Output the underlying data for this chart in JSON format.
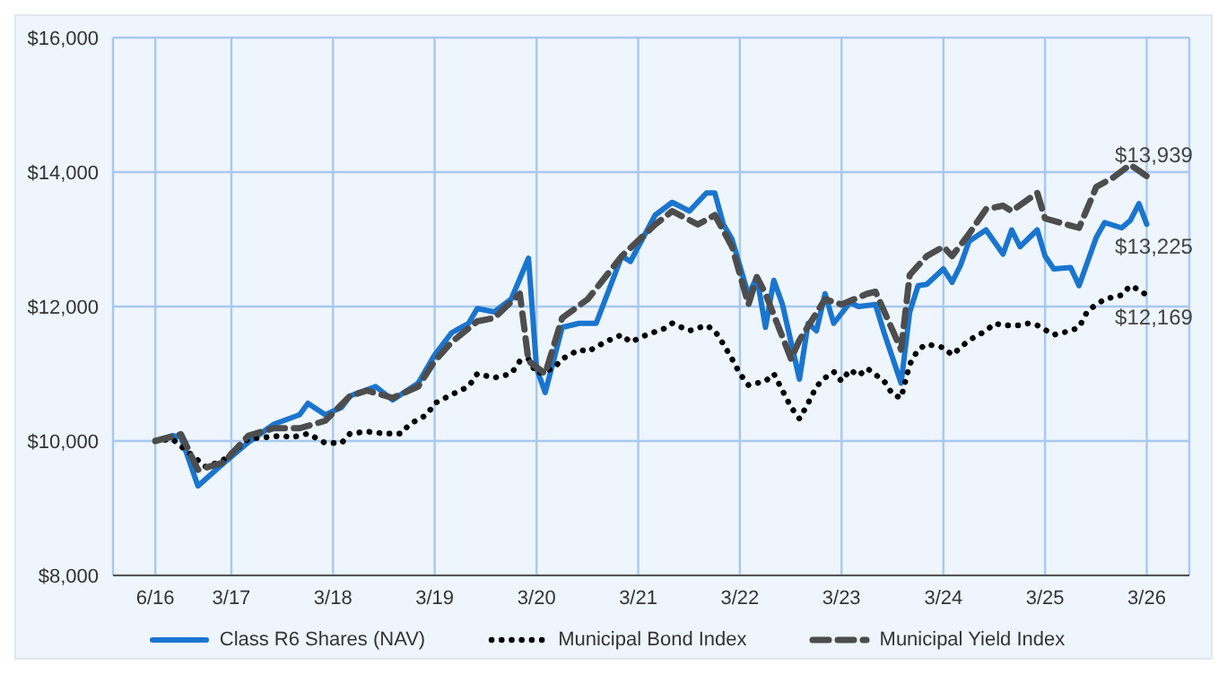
{
  "chart_data": {
    "type": "line",
    "xlim": [
      "2016-01",
      "2026-08"
    ],
    "xticks": [
      {
        "value": "2016-06",
        "label": "6/16"
      },
      {
        "value": "2017-03",
        "label": "3/17"
      },
      {
        "value": "2018-03",
        "label": "3/18"
      },
      {
        "value": "2019-03",
        "label": "3/19"
      },
      {
        "value": "2020-03",
        "label": "3/20"
      },
      {
        "value": "2021-03",
        "label": "3/21"
      },
      {
        "value": "2022-03",
        "label": "3/22"
      },
      {
        "value": "2023-03",
        "label": "3/23"
      },
      {
        "value": "2024-03",
        "label": "3/24"
      },
      {
        "value": "2025-03",
        "label": "3/25"
      },
      {
        "value": "2026-03",
        "label": "3/26"
      }
    ],
    "ylim": [
      8000,
      16000
    ],
    "yticks": [
      {
        "value": 8000,
        "label": "$8,000"
      },
      {
        "value": 10000,
        "label": "$10,000"
      },
      {
        "value": 12000,
        "label": "$12,000"
      },
      {
        "value": 14000,
        "label": "$14,000"
      },
      {
        "value": 16000,
        "label": "$16,000"
      }
    ],
    "grid": true,
    "legend": "bottom",
    "marker": "none",
    "series": [
      {
        "name": "Class R6 Shares (NAV)",
        "color": "#1a75cf",
        "line_style": "solid",
        "x": [
          "2016-06",
          "2016-08",
          "2016-09",
          "2016-11",
          "2017-02",
          "2017-05",
          "2017-08",
          "2017-11",
          "2017-12",
          "2018-02",
          "2018-04",
          "2018-05",
          "2018-08",
          "2018-10",
          "2019-01",
          "2019-03",
          "2019-05",
          "2019-07",
          "2019-08",
          "2019-10",
          "2019-12",
          "2020-02",
          "2020-03",
          "2020-04",
          "2020-06",
          "2020-08",
          "2020-10",
          "2021-01",
          "2021-02",
          "2021-05",
          "2021-07",
          "2021-09",
          "2021-11",
          "2021-12",
          "2022-01",
          "2022-02",
          "2022-04",
          "2022-05",
          "2022-06",
          "2022-07",
          "2022-08",
          "2022-10",
          "2022-11",
          "2022-12",
          "2023-01",
          "2023-02",
          "2023-04",
          "2023-05",
          "2023-07",
          "2023-08",
          "2023-10",
          "2023-11",
          "2023-12",
          "2024-01",
          "2024-03",
          "2024-04",
          "2024-05",
          "2024-06",
          "2024-08",
          "2024-10",
          "2024-11",
          "2024-12",
          "2025-02",
          "2025-03",
          "2025-04",
          "2025-06",
          "2025-07",
          "2025-09",
          "2025-10",
          "2025-12",
          "2026-01",
          "2026-02",
          "2026-03"
        ],
        "values": [
          10000,
          10080,
          10060,
          9330,
          9670,
          9980,
          10250,
          10390,
          10560,
          10390,
          10500,
          10670,
          10810,
          10610,
          10860,
          11280,
          11610,
          11750,
          11970,
          11920,
          12110,
          12720,
          11080,
          10720,
          11690,
          11750,
          11750,
          12750,
          12670,
          13360,
          13550,
          13420,
          13690,
          13690,
          13220,
          13000,
          12170,
          12440,
          11690,
          12390,
          12030,
          10920,
          11750,
          11640,
          12190,
          11750,
          12060,
          12000,
          12030,
          11610,
          10860,
          11920,
          12310,
          12330,
          12560,
          12360,
          12610,
          12970,
          13140,
          12780,
          13140,
          12890,
          13140,
          12750,
          12560,
          12580,
          12310,
          13030,
          13250,
          13170,
          13280,
          13530,
          13225
        ]
      },
      {
        "name": "Municipal Bond Index",
        "color": "#000000",
        "line_style": "dotted",
        "x": [
          "2016-06",
          "2016-08",
          "2016-12",
          "2017-02",
          "2017-05",
          "2017-09",
          "2017-10",
          "2017-12",
          "2018-02",
          "2018-04",
          "2018-05",
          "2018-07",
          "2018-09",
          "2018-11",
          "2018-12",
          "2019-02",
          "2019-03",
          "2019-05",
          "2019-07",
          "2019-08",
          "2019-10",
          "2019-12",
          "2020-01",
          "2020-02",
          "2020-03",
          "2020-05",
          "2020-06",
          "2020-08",
          "2020-09",
          "2020-11",
          "2021-01",
          "2021-02",
          "2021-04",
          "2021-06",
          "2021-07",
          "2021-09",
          "2021-11",
          "2021-12",
          "2022-01",
          "2022-02",
          "2022-03",
          "2022-04",
          "2022-05",
          "2022-06",
          "2022-07",
          "2022-08",
          "2022-09",
          "2022-10",
          "2022-11",
          "2022-12",
          "2023-01",
          "2023-02",
          "2023-03",
          "2023-04",
          "2023-05",
          "2023-06",
          "2023-08",
          "2023-09",
          "2023-10",
          "2023-11",
          "2023-12",
          "2024-01",
          "2024-03",
          "2024-04",
          "2024-06",
          "2024-08",
          "2024-09",
          "2024-10",
          "2024-12",
          "2025-01",
          "2025-02",
          "2025-04",
          "2025-06",
          "2025-07",
          "2025-08",
          "2025-10",
          "2025-12",
          "2026-01",
          "2026-02",
          "2026-03"
        ],
        "values": [
          10000,
          10030,
          9610,
          9720,
          10030,
          10080,
          10050,
          10110,
          9970,
          9970,
          10110,
          10140,
          10110,
          10110,
          10250,
          10390,
          10560,
          10690,
          10810,
          11000,
          10940,
          11000,
          11190,
          11220,
          11000,
          11080,
          11220,
          11360,
          11330,
          11470,
          11580,
          11470,
          11580,
          11670,
          11750,
          11640,
          11720,
          11640,
          11440,
          11220,
          11000,
          10830,
          10860,
          10890,
          11000,
          10750,
          10500,
          10330,
          10560,
          10810,
          10940,
          11030,
          10890,
          11060,
          10970,
          11080,
          10890,
          10690,
          10640,
          11140,
          11360,
          11440,
          11390,
          11280,
          11500,
          11640,
          11750,
          11720,
          11720,
          11750,
          11720,
          11580,
          11640,
          11690,
          11940,
          12110,
          12170,
          12310,
          12250,
          12169
        ]
      },
      {
        "name": "Municipal Yield Index",
        "color": "#4d4d4d",
        "line_style": "dashed",
        "x": [
          "2016-06",
          "2016-09",
          "2016-11",
          "2017-02",
          "2017-05",
          "2017-08",
          "2017-11",
          "2018-02",
          "2018-05",
          "2018-07",
          "2018-10",
          "2019-01",
          "2019-03",
          "2019-05",
          "2019-08",
          "2019-10",
          "2020-01",
          "2020-02",
          "2020-04",
          "2020-06",
          "2020-09",
          "2021-01",
          "2021-05",
          "2021-07",
          "2021-10",
          "2021-12",
          "2022-02",
          "2022-04",
          "2022-05",
          "2022-06",
          "2022-09",
          "2022-10",
          "2023-01",
          "2023-03",
          "2023-06",
          "2023-07",
          "2023-10",
          "2023-11",
          "2024-01",
          "2024-03",
          "2024-04",
          "2024-06",
          "2024-08",
          "2024-10",
          "2024-11",
          "2025-02",
          "2025-03",
          "2025-07",
          "2025-09",
          "2025-11",
          "2026-01",
          "2026-03"
        ],
        "values": [
          10000,
          10100,
          9570,
          9680,
          10080,
          10190,
          10190,
          10300,
          10670,
          10750,
          10640,
          10810,
          11190,
          11470,
          11780,
          11830,
          12190,
          11190,
          11000,
          11830,
          12110,
          12750,
          13220,
          13420,
          13220,
          13360,
          12890,
          12030,
          12440,
          12190,
          11220,
          11500,
          12110,
          12030,
          12190,
          12220,
          11360,
          12470,
          12750,
          12890,
          12750,
          13080,
          13450,
          13500,
          13420,
          13690,
          13310,
          13170,
          13780,
          13920,
          14110,
          13939
        ]
      }
    ],
    "annotations": [
      {
        "text": "$13,225",
        "x": "2026-03",
        "y": 13225
      },
      {
        "text": "$12,169",
        "x": "2026-03",
        "y": 12169
      },
      {
        "text": "$13,939",
        "x": "2026-03",
        "y": 13939
      }
    ]
  }
}
